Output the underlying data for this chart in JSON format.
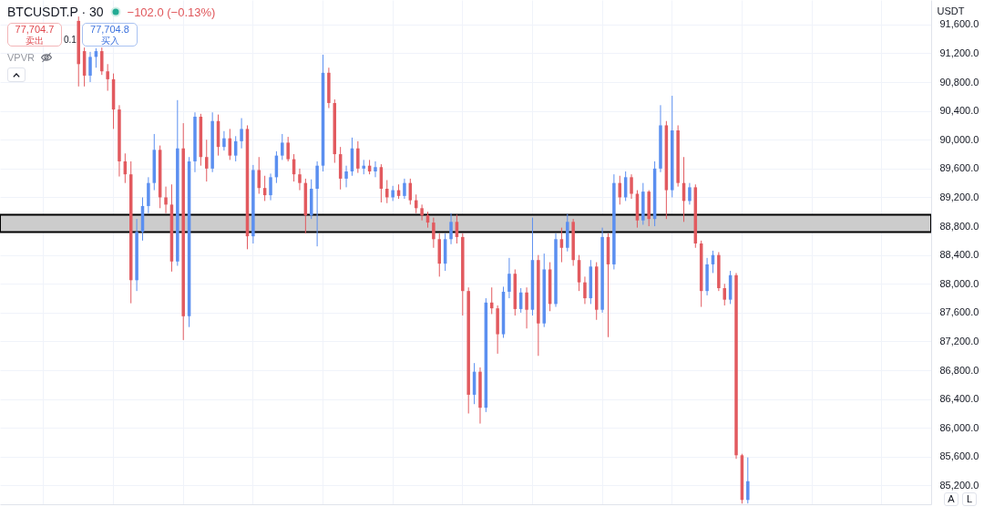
{
  "chart_data": {
    "type": "candlestick",
    "title": "BTCUSDT.P · 30",
    "annotations": [
      "−102.0 (−0.13%)",
      "77,704.7",
      "卖出",
      "0.1",
      "77,704.8",
      "买入",
      "VPVR",
      "A",
      "L"
    ],
    "ylabel": "USDT",
    "categories": [
      null,
      null,
      null,
      null,
      null,
      null,
      null,
      null,
      null,
      null,
      null,
      null,
      null,
      null,
      null,
      null,
      null,
      null,
      null,
      null,
      null,
      null,
      null,
      null,
      null,
      null,
      null,
      null,
      null,
      null,
      null,
      null,
      null,
      null,
      null,
      null,
      null,
      null,
      null,
      null,
      null,
      null,
      null,
      null,
      null,
      null,
      null,
      null,
      null,
      null,
      null,
      null,
      null,
      null,
      null,
      null,
      null,
      null,
      null,
      null,
      null,
      null,
      null,
      null,
      null,
      null,
      null,
      null,
      null,
      null,
      null,
      null,
      null,
      null,
      null,
      null,
      null,
      null,
      null,
      null,
      null,
      null,
      null,
      null,
      null,
      null,
      null,
      null,
      null,
      null,
      null,
      null,
      null,
      null,
      null,
      null,
      null,
      null,
      null,
      null,
      null,
      null,
      null,
      null,
      null,
      null,
      null,
      null,
      null,
      null,
      null,
      null,
      null,
      null,
      null,
      null,
      null,
      null,
      null,
      null,
      null,
      null,
      null,
      null,
      null,
      null,
      null,
      null,
      null,
      null,
      null,
      null,
      null,
      null,
      null,
      null,
      null,
      null,
      null,
      null,
      null,
      null,
      null,
      null,
      null,
      null,
      null,
      null,
      null,
      null,
      null,
      null,
      null,
      null,
      null,
      null,
      null,
      null,
      null,
      null
    ],
    "ohlc": [
      null,
      null,
      null,
      null,
      null,
      null,
      null,
      null,
      null,
      null,
      null,
      null,
      null,
      [
        91650,
        91710,
        90740,
        91050
      ],
      [
        91230,
        91280,
        90740,
        90890
      ],
      [
        90890,
        91220,
        90800,
        91150
      ],
      [
        91150,
        91270,
        91000,
        91230
      ],
      [
        91230,
        91280,
        90900,
        90950
      ],
      [
        90950,
        91050,
        90680,
        90840
      ],
      [
        90840,
        90920,
        90150,
        90420
      ],
      [
        90420,
        90480,
        89490,
        89700
      ],
      [
        89700,
        89810,
        89400,
        89520
      ],
      [
        89520,
        89700,
        87730,
        88050
      ],
      [
        88050,
        88900,
        87900,
        88720
      ],
      [
        88720,
        89200,
        88600,
        89080
      ],
      [
        89080,
        89480,
        88980,
        89400
      ],
      [
        89400,
        90080,
        89300,
        89860
      ],
      [
        89860,
        89920,
        89050,
        89200
      ],
      [
        89200,
        89350,
        88980,
        89100
      ],
      [
        89100,
        89380,
        88170,
        88310
      ],
      [
        88310,
        90550,
        88250,
        89880
      ],
      [
        89880,
        90230,
        87220,
        87550
      ],
      [
        87550,
        89760,
        87400,
        89700
      ],
      [
        89700,
        90380,
        89550,
        90320
      ],
      [
        90320,
        90360,
        89640,
        89760
      ],
      [
        89760,
        90000,
        89420,
        89600
      ],
      [
        89600,
        90380,
        89550,
        90260
      ],
      [
        90260,
        90350,
        89780,
        89900
      ],
      [
        89900,
        90120,
        89850,
        90020
      ],
      [
        90020,
        90150,
        89720,
        89780
      ],
      [
        89780,
        90050,
        89700,
        89980
      ],
      [
        89980,
        90300,
        89880,
        90150
      ],
      [
        90150,
        90200,
        88480,
        88660
      ],
      [
        88660,
        89650,
        88560,
        89580
      ],
      [
        89580,
        89760,
        89250,
        89330
      ],
      [
        89330,
        89500,
        89150,
        89230
      ],
      [
        89230,
        89530,
        89160,
        89480
      ],
      [
        89480,
        89840,
        89400,
        89780
      ],
      [
        89780,
        90080,
        89720,
        89960
      ],
      [
        89960,
        90040,
        89700,
        89730
      ],
      [
        89730,
        89800,
        89420,
        89520
      ],
      [
        89520,
        89600,
        89300,
        89400
      ],
      [
        89400,
        89460,
        88700,
        88950
      ],
      [
        88950,
        89450,
        88900,
        89320
      ],
      [
        89320,
        89700,
        88520,
        89640
      ],
      [
        89640,
        91180,
        89560,
        90930
      ],
      [
        90930,
        91000,
        90440,
        90510
      ],
      [
        90510,
        90560,
        89680,
        89800
      ],
      [
        89800,
        89900,
        89310,
        89460
      ],
      [
        89460,
        89640,
        89340,
        89560
      ],
      [
        89560,
        90030,
        89500,
        89880
      ],
      [
        89880,
        89980,
        89540,
        89600
      ],
      [
        89600,
        89720,
        89520,
        89640
      ],
      [
        89640,
        89720,
        89520,
        89560
      ],
      [
        89560,
        89700,
        89480,
        89620
      ],
      [
        89620,
        89660,
        89130,
        89320
      ],
      [
        89320,
        89440,
        89120,
        89200
      ],
      [
        89200,
        89360,
        89150,
        89300
      ],
      [
        89300,
        89380,
        89180,
        89220
      ],
      [
        89220,
        89460,
        89180,
        89400
      ],
      [
        89400,
        89460,
        89100,
        89160
      ],
      [
        89160,
        89240,
        88980,
        89050
      ],
      [
        89050,
        89100,
        88880,
        88950
      ],
      [
        88950,
        89000,
        88780,
        88850
      ],
      [
        88850,
        88920,
        88500,
        88620
      ],
      [
        88620,
        88700,
        88100,
        88280
      ],
      [
        88280,
        88700,
        88180,
        88620
      ],
      [
        88620,
        88980,
        88550,
        88860
      ],
      [
        88860,
        88960,
        88560,
        88650
      ],
      [
        88650,
        88700,
        87560,
        87900
      ],
      [
        87900,
        87950,
        86200,
        86460
      ],
      [
        86460,
        86900,
        86330,
        86780
      ],
      [
        86780,
        86840,
        86060,
        86280
      ],
      [
        86280,
        87800,
        86220,
        87740
      ],
      [
        87740,
        87950,
        87580,
        87660
      ],
      [
        87660,
        87700,
        87030,
        87300
      ],
      [
        87300,
        87960,
        87250,
        87890
      ],
      [
        87890,
        88360,
        87800,
        88140
      ],
      [
        88140,
        88200,
        87560,
        87650
      ],
      [
        87650,
        87940,
        87600,
        87880
      ],
      [
        87880,
        87950,
        87380,
        87640
      ],
      [
        87640,
        88920,
        87560,
        88330
      ],
      [
        88330,
        88400,
        87000,
        87450
      ],
      [
        87450,
        88420,
        87400,
        88200
      ],
      [
        88200,
        88300,
        87620,
        87720
      ],
      [
        87720,
        88700,
        87680,
        88620
      ],
      [
        88620,
        88780,
        88300,
        88500
      ],
      [
        88500,
        88970,
        88450,
        88860
      ],
      [
        88860,
        88900,
        88250,
        88330
      ],
      [
        88330,
        88400,
        87900,
        88020
      ],
      [
        88020,
        88100,
        87720,
        87800
      ],
      [
        87800,
        88330,
        87720,
        88240
      ],
      [
        88240,
        88300,
        87500,
        87640
      ],
      [
        87640,
        88780,
        87600,
        88650
      ],
      [
        88650,
        88700,
        87260,
        88270
      ],
      [
        88270,
        89520,
        88200,
        89400
      ],
      [
        89400,
        89500,
        89100,
        89200
      ],
      [
        89200,
        89560,
        89150,
        89480
      ],
      [
        89480,
        89520,
        89180,
        89250
      ],
      [
        89250,
        89300,
        88780,
        88880
      ],
      [
        88880,
        89400,
        88820,
        89280
      ],
      [
        89280,
        89300,
        88800,
        88900
      ],
      [
        88900,
        89700,
        88800,
        89600
      ],
      [
        89600,
        90480,
        89550,
        90200
      ],
      [
        90200,
        90260,
        88900,
        89300
      ],
      [
        89300,
        90610,
        89200,
        90130
      ],
      [
        90130,
        90200,
        89350,
        89400
      ],
      [
        89400,
        89760,
        88860,
        89150
      ],
      [
        89150,
        89400,
        89100,
        89340
      ],
      [
        89340,
        89380,
        88500,
        88560
      ],
      [
        88560,
        88600,
        87680,
        87900
      ],
      [
        87900,
        88360,
        87840,
        88270
      ],
      [
        88270,
        88460,
        88150,
        88400
      ],
      [
        88400,
        88440,
        87900,
        87940
      ],
      [
        87940,
        88000,
        87700,
        87780
      ],
      [
        87780,
        88180,
        87720,
        88120
      ],
      [
        88120,
        88150,
        85570,
        85620
      ],
      [
        85620,
        85640,
        84950,
        85000
      ],
      [
        85000,
        85590,
        84950,
        85260
      ],
      null,
      null,
      null,
      null,
      null,
      null,
      null,
      null,
      null,
      null,
      null,
      null,
      null,
      null,
      null,
      null,
      null,
      null,
      null,
      null,
      null,
      null,
      null,
      null,
      null,
      null,
      null,
      null,
      null,
      null,
      null
    ],
    "colors": [
      null,
      null,
      null,
      null,
      null,
      null,
      null,
      null,
      null,
      null,
      null,
      null,
      null,
      "#e25a5f",
      "#e25a5f",
      "#5b8ff0",
      "#5b8ff0",
      "#e25a5f",
      "#e25a5f",
      "#e25a5f",
      "#e25a5f",
      "#e25a5f",
      "#e25a5f",
      "#5b8ff0",
      "#5b8ff0",
      "#5b8ff0",
      "#5b8ff0",
      "#e25a5f",
      "#e25a5f",
      "#e25a5f",
      "#5b8ff0",
      "#e25a5f",
      "#5b8ff0",
      "#5b8ff0",
      "#e25a5f",
      "#e25a5f",
      "#5b8ff0",
      "#e25a5f",
      "#5b8ff0",
      "#e25a5f",
      "#5b8ff0",
      "#5b8ff0",
      "#e25a5f",
      "#5b8ff0",
      "#e25a5f",
      "#e25a5f",
      "#5b8ff0",
      "#5b8ff0",
      "#5b8ff0",
      "#e25a5f",
      "#e25a5f",
      "#e25a5f",
      "#e25a5f",
      "#5b8ff0",
      "#5b8ff0",
      "#5b8ff0",
      "#e25a5f",
      "#e25a5f",
      "#e25a5f",
      "#5b8ff0",
      "#5b8ff0",
      "#e25a5f",
      "#5b8ff0",
      "#e25a5f",
      "#5b8ff0",
      "#e25a5f",
      "#e25a5f",
      "#5b8ff0",
      "#e25a5f",
      "#5b8ff0",
      "#e25a5f",
      "#e25a5f",
      "#e25a5f",
      "#e25a5f",
      "#e25a5f",
      "#e25a5f",
      "#5b8ff0",
      "#5b8ff0",
      "#e25a5f",
      "#e25a5f",
      "#e25a5f",
      "#5b8ff0",
      "#e25a5f",
      "#5b8ff0",
      "#e25a5f",
      "#e25a5f",
      "#5b8ff0",
      "#5b8ff0",
      "#e25a5f",
      "#5b8ff0",
      "#e25a5f",
      "#5b8ff0",
      "#e25a5f",
      "#5b8ff0",
      "#e25a5f",
      "#5b8ff0",
      "#e25a5f",
      "#5b8ff0",
      "#e25a5f",
      "#e25a5f",
      "#e25a5f",
      "#5b8ff0",
      "#e25a5f",
      "#5b8ff0",
      "#e25a5f",
      "#5b8ff0",
      "#e25a5f",
      "#5b8ff0",
      "#e25a5f",
      "#e25a5f",
      "#5b8ff0",
      "#e25a5f",
      "#5b8ff0",
      "#5b8ff0",
      "#e25a5f",
      "#5b8ff0",
      "#e25a5f",
      "#e25a5f",
      "#5b8ff0",
      "#e25a5f",
      "#e25a5f",
      "#5b8ff0",
      "#5b8ff0",
      "#e25a5f",
      "#e25a5f",
      "#5b8ff0",
      "#e25a5f",
      "#e25a5f",
      "#5b8ff0",
      null,
      null,
      null,
      null,
      null,
      null,
      null,
      null,
      null,
      null,
      null,
      null,
      null,
      null,
      null,
      null,
      null,
      null,
      null,
      null,
      null,
      null,
      null,
      null,
      null,
      null,
      null,
      null,
      null,
      null,
      null
    ],
    "ylim": [
      84940,
      91940
    ],
    "yticks": [
      {
        "value": 85200,
        "label": "85,200.0"
      },
      {
        "value": 85600,
        "label": "85,600.0"
      },
      {
        "value": 86000,
        "label": "86,000.0"
      },
      {
        "value": 86400,
        "label": "86,400.0"
      },
      {
        "value": 86800,
        "label": "86,800.0"
      },
      {
        "value": 87200,
        "label": "87,200.0"
      },
      {
        "value": 87600,
        "label": "87,600.0"
      },
      {
        "value": 88000,
        "label": "88,000.0"
      },
      {
        "value": 88400,
        "label": "88,400.0"
      },
      {
        "value": 88800,
        "label": "88,800.0"
      },
      {
        "value": 89200,
        "label": "89,200.0"
      },
      {
        "value": 89600,
        "label": "89,600.0"
      },
      {
        "value": 90000,
        "label": "90,000.0"
      },
      {
        "value": 90400,
        "label": "90,400.0"
      },
      {
        "value": 90800,
        "label": "90,800.0"
      },
      {
        "value": 91200,
        "label": "91,200.0"
      },
      {
        "value": 91600,
        "label": "91,600.0"
      }
    ],
    "bands": [
      {
        "axis": "y",
        "from": 88720,
        "to": 88960,
        "color": "#cccccc"
      }
    ],
    "grid": true,
    "tick_labels": "y"
  }
}
